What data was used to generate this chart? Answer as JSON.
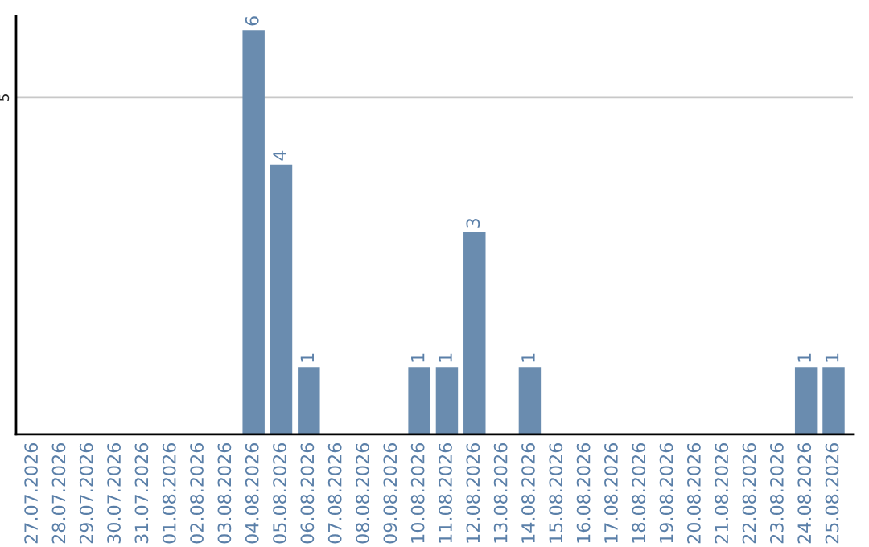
{
  "chart_data": {
    "type": "bar",
    "categories": [
      "27.07.2026",
      "28.07.2026",
      "29.07.2026",
      "30.07.2026",
      "31.07.2026",
      "01.08.2026",
      "02.08.2026",
      "03.08.2026",
      "04.08.2026",
      "05.08.2026",
      "06.08.2026",
      "07.08.2026",
      "08.08.2026",
      "09.08.2026",
      "10.08.2026",
      "11.08.2026",
      "12.08.2026",
      "13.08.2026",
      "14.08.2026",
      "15.08.2026",
      "16.08.2026",
      "17.08.2026",
      "18.08.2026",
      "19.08.2026",
      "20.08.2026",
      "21.08.2026",
      "22.08.2026",
      "23.08.2026",
      "24.08.2026",
      "25.08.2026"
    ],
    "values": [
      0,
      0,
      0,
      0,
      0,
      0,
      0,
      0,
      6,
      4,
      1,
      0,
      0,
      0,
      1,
      1,
      3,
      0,
      1,
      0,
      0,
      0,
      0,
      0,
      0,
      0,
      0,
      0,
      1,
      1
    ],
    "value_labels": [
      null,
      null,
      null,
      null,
      null,
      null,
      null,
      null,
      "6",
      "4",
      "1",
      null,
      null,
      null,
      "1",
      "1",
      "3",
      null,
      "1",
      null,
      null,
      null,
      null,
      null,
      null,
      null,
      null,
      null,
      "1",
      "1"
    ],
    "color": "#6a8caf",
    "ylim": [
      0,
      6.2
    ],
    "yticks": [
      5
    ],
    "grid": "y"
  }
}
